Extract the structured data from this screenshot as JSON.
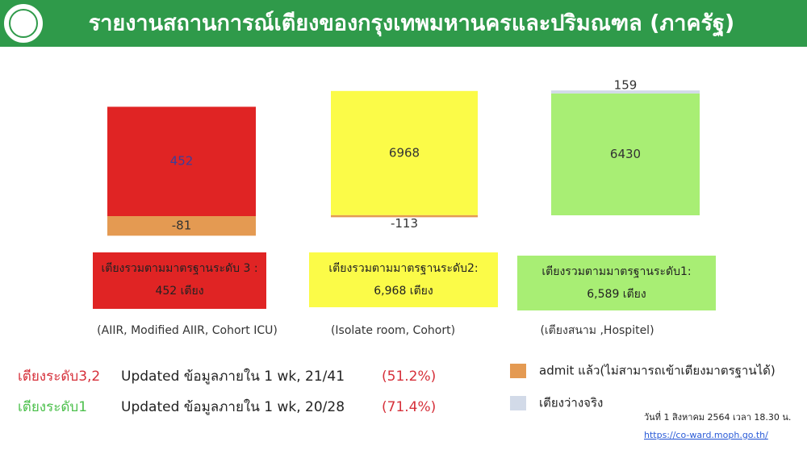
{
  "header": {
    "title": "รายงานสถานการณ์เตียงของกรุงเทพมหานครและปริมณฑล (ภาครัฐ)"
  },
  "chart_data": [
    {
      "type": "bar",
      "categories": [
        "เตียงรวมตามมาตรฐานระดับ 3 :"
      ],
      "total_label": "452 เตียง",
      "note": "(AIIR, Modified AIIR, Cohort ICU)",
      "ylim": [
        -100,
        600
      ],
      "series": [
        {
          "values": [
            452
          ],
          "color": "#e02424"
        },
        {
          "name": "admit แล้ว(ไม่สามารถเข้าเตียงมาตรฐานได้)",
          "values": [
            -81
          ],
          "color": "#e49a52"
        }
      ]
    },
    {
      "type": "bar",
      "categories": [
        "เตียงรวมตามมาตรฐานระดับ2:"
      ],
      "total_label": "6,968 เตียง",
      "note": "(Isolate room, Cohort)",
      "ylim": [
        -1000,
        8000
      ],
      "series": [
        {
          "values": [
            6968
          ],
          "color": "#fbfb48"
        },
        {
          "values": [
            -113
          ],
          "color": "#e49a52"
        }
      ]
    },
    {
      "type": "bar",
      "categories": [
        "เตียงรวมตามมาตรฐานระดับ1:"
      ],
      "total_label": "6,589 เตียง",
      "note": "(เตียงสนาม ,Hospitel)",
      "ylim": [
        -1000,
        7000
      ],
      "series": [
        {
          "values": [
            6430
          ],
          "color": "#a8ee74"
        },
        {
          "name": "เตียงว่างจริง",
          "values": [
            159
          ],
          "color": "#d2dae8"
        }
      ]
    }
  ],
  "updates": [
    {
      "label": "เตียงระดับ3,2",
      "text": "Updated ข้อมูลภายใน 1 wk, 21/41",
      "percent": "(51.2%)"
    },
    {
      "label": "เตียงระดับ1",
      "text": "Updated ข้อมูลภายใน 1 wk, 20/28",
      "percent": "(71.4%)"
    }
  ],
  "footer": {
    "date": "วันที่ 1 สิงหาคม 2564 เวลา 18.30 น.",
    "link": "https://co-ward.moph.go.th/"
  }
}
